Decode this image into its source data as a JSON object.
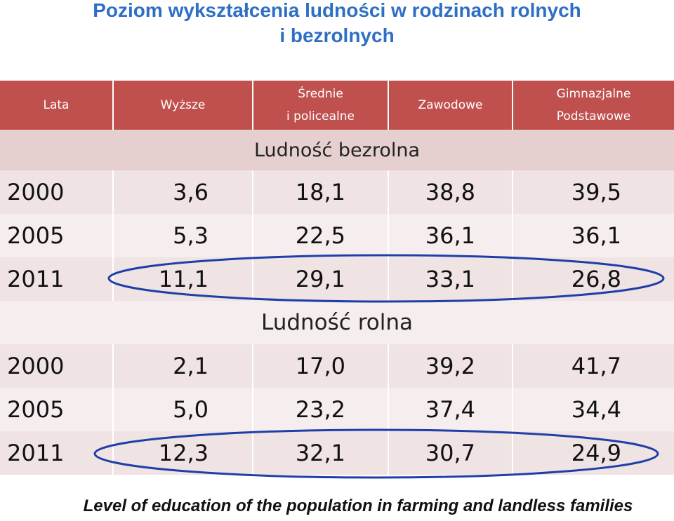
{
  "title": {
    "line1": "Poziom wykształcenia ludności w rodzinach rolnych",
    "line2": "i bezrolnych"
  },
  "table": {
    "headers": [
      "Lata",
      "Wyższe",
      "Średnie",
      "i policealne",
      "Zawodowe",
      "Gimnazjalne",
      "Podstawowe"
    ],
    "sections": [
      {
        "label": "Ludność bezrolna",
        "rows": [
          [
            "2000",
            "3,6",
            "18,1",
            "38,8",
            "39,5"
          ],
          [
            "2005",
            "5,3",
            "22,5",
            "36,1",
            "36,1"
          ],
          [
            "2011",
            "11,1",
            "29,1",
            "33,1",
            "26,8"
          ]
        ]
      },
      {
        "label": "Ludność rolna",
        "rows": [
          [
            "2000",
            "2,1",
            "17,0",
            "39,2",
            "41,7"
          ],
          [
            "2005",
            "5,0",
            "23,2",
            "37,4",
            "34,4"
          ],
          [
            "2011",
            "12,3",
            "32,1",
            "30,7",
            "24,9"
          ]
        ]
      }
    ]
  },
  "footer": "Level of education of the population in farming and landless families",
  "colors": {
    "title": "#2e6fc4",
    "header_bg": "#c0504d",
    "highlight_ellipse": "#1f3fa8"
  }
}
